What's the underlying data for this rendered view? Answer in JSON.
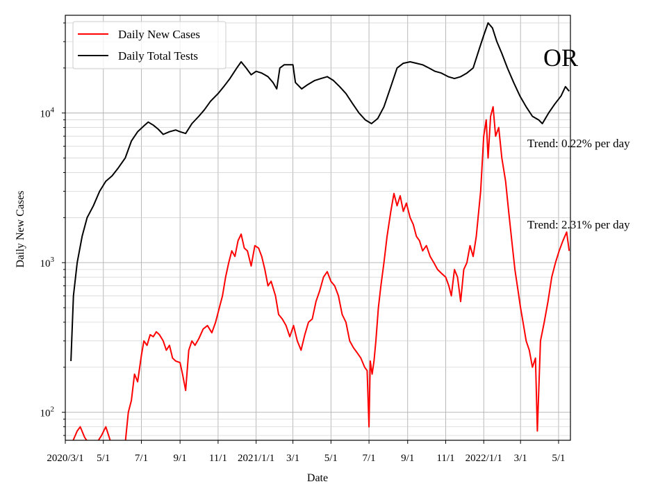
{
  "chart_data": {
    "type": "line",
    "xlabel": "Date",
    "ylabel": "Daily New Cases",
    "yscale": "log",
    "ylim": [
      65,
      45000
    ],
    "xlim": [
      "2020-03-01",
      "2022-05-20"
    ],
    "grid": true,
    "legend_position": "top-left",
    "x_ticks": [
      {
        "date": "2020-03-01",
        "label": "2020/3/1"
      },
      {
        "date": "2020-05-01",
        "label": "5/1"
      },
      {
        "date": "2020-07-01",
        "label": "7/1"
      },
      {
        "date": "2020-09-01",
        "label": "9/1"
      },
      {
        "date": "2020-11-01",
        "label": "11/1"
      },
      {
        "date": "2021-01-01",
        "label": "2021/1/1"
      },
      {
        "date": "2021-03-01",
        "label": "3/1"
      },
      {
        "date": "2021-05-01",
        "label": "5/1"
      },
      {
        "date": "2021-07-01",
        "label": "7/1"
      },
      {
        "date": "2021-09-01",
        "label": "9/1"
      },
      {
        "date": "2021-11-01",
        "label": "11/1"
      },
      {
        "date": "2022-01-01",
        "label": "2022/1/1"
      },
      {
        "date": "2022-03-01",
        "label": "3/1"
      },
      {
        "date": "2022-05-01",
        "label": "5/1"
      }
    ],
    "y_ticks": [
      {
        "value": 100,
        "base": "10",
        "exp": "2"
      },
      {
        "value": 1000,
        "base": "10",
        "exp": "3"
      },
      {
        "value": 10000,
        "base": "10",
        "exp": "4"
      }
    ],
    "series": [
      {
        "name": "Daily New Cases",
        "color": "#ff0000",
        "points": [
          [
            "2020-03-10",
            60
          ],
          [
            "2020-03-20",
            75
          ],
          [
            "2020-03-25",
            80
          ],
          [
            "2020-04-01",
            68
          ],
          [
            "2020-04-10",
            60
          ],
          [
            "2020-04-20",
            62
          ],
          [
            "2020-04-28",
            70
          ],
          [
            "2020-05-05",
            80
          ],
          [
            "2020-05-12",
            65
          ],
          [
            "2020-05-20",
            60
          ],
          [
            "2020-05-28",
            58
          ],
          [
            "2020-06-05",
            62
          ],
          [
            "2020-06-10",
            100
          ],
          [
            "2020-06-15",
            120
          ],
          [
            "2020-06-20",
            180
          ],
          [
            "2020-06-25",
            160
          ],
          [
            "2020-07-01",
            240
          ],
          [
            "2020-07-05",
            300
          ],
          [
            "2020-07-10",
            280
          ],
          [
            "2020-07-15",
            330
          ],
          [
            "2020-07-20",
            320
          ],
          [
            "2020-07-25",
            345
          ],
          [
            "2020-07-30",
            330
          ],
          [
            "2020-08-05",
            300
          ],
          [
            "2020-08-10",
            260
          ],
          [
            "2020-08-15",
            280
          ],
          [
            "2020-08-20",
            230
          ],
          [
            "2020-08-25",
            220
          ],
          [
            "2020-09-01",
            215
          ],
          [
            "2020-09-05",
            180
          ],
          [
            "2020-09-10",
            140
          ],
          [
            "2020-09-15",
            260
          ],
          [
            "2020-09-20",
            300
          ],
          [
            "2020-09-25",
            280
          ],
          [
            "2020-10-01",
            310
          ],
          [
            "2020-10-08",
            360
          ],
          [
            "2020-10-15",
            380
          ],
          [
            "2020-10-22",
            340
          ],
          [
            "2020-10-28",
            400
          ],
          [
            "2020-11-03",
            500
          ],
          [
            "2020-11-08",
            600
          ],
          [
            "2020-11-13",
            800
          ],
          [
            "2020-11-18",
            1000
          ],
          [
            "2020-11-23",
            1200
          ],
          [
            "2020-11-28",
            1100
          ],
          [
            "2020-12-03",
            1400
          ],
          [
            "2020-12-08",
            1550
          ],
          [
            "2020-12-13",
            1250
          ],
          [
            "2020-12-18",
            1200
          ],
          [
            "2020-12-24",
            950
          ],
          [
            "2020-12-30",
            1300
          ],
          [
            "2021-01-05",
            1250
          ],
          [
            "2021-01-10",
            1100
          ],
          [
            "2021-01-15",
            900
          ],
          [
            "2021-01-20",
            700
          ],
          [
            "2021-01-25",
            750
          ],
          [
            "2021-02-01",
            600
          ],
          [
            "2021-02-06",
            450
          ],
          [
            "2021-02-12",
            420
          ],
          [
            "2021-02-18",
            380
          ],
          [
            "2021-02-24",
            320
          ],
          [
            "2021-03-02",
            380
          ],
          [
            "2021-03-08",
            300
          ],
          [
            "2021-03-14",
            260
          ],
          [
            "2021-03-20",
            330
          ],
          [
            "2021-03-26",
            400
          ],
          [
            "2021-04-01",
            420
          ],
          [
            "2021-04-07",
            550
          ],
          [
            "2021-04-13",
            650
          ],
          [
            "2021-04-19",
            800
          ],
          [
            "2021-04-25",
            870
          ],
          [
            "2021-05-01",
            750
          ],
          [
            "2021-05-07",
            700
          ],
          [
            "2021-05-13",
            600
          ],
          [
            "2021-05-19",
            450
          ],
          [
            "2021-05-25",
            400
          ],
          [
            "2021-05-31",
            300
          ],
          [
            "2021-06-06",
            270
          ],
          [
            "2021-06-12",
            250
          ],
          [
            "2021-06-18",
            230
          ],
          [
            "2021-06-24",
            200
          ],
          [
            "2021-06-28",
            190
          ],
          [
            "2021-07-01",
            80
          ],
          [
            "2021-07-03",
            220
          ],
          [
            "2021-07-06",
            180
          ],
          [
            "2021-07-09",
            220
          ],
          [
            "2021-07-12",
            300
          ],
          [
            "2021-07-16",
            500
          ],
          [
            "2021-07-20",
            700
          ],
          [
            "2021-07-25",
            1000
          ],
          [
            "2021-07-30",
            1500
          ],
          [
            "2021-08-05",
            2200
          ],
          [
            "2021-08-10",
            2900
          ],
          [
            "2021-08-15",
            2400
          ],
          [
            "2021-08-20",
            2800
          ],
          [
            "2021-08-25",
            2200
          ],
          [
            "2021-08-30",
            2500
          ],
          [
            "2021-09-05",
            2000
          ],
          [
            "2021-09-10",
            1800
          ],
          [
            "2021-09-15",
            1500
          ],
          [
            "2021-09-20",
            1400
          ],
          [
            "2021-09-25",
            1200
          ],
          [
            "2021-10-01",
            1300
          ],
          [
            "2021-10-07",
            1100
          ],
          [
            "2021-10-13",
            1000
          ],
          [
            "2021-10-19",
            900
          ],
          [
            "2021-10-25",
            850
          ],
          [
            "2021-11-01",
            800
          ],
          [
            "2021-11-06",
            700
          ],
          [
            "2021-11-10",
            600
          ],
          [
            "2021-11-15",
            900
          ],
          [
            "2021-11-20",
            800
          ],
          [
            "2021-11-25",
            550
          ],
          [
            "2021-11-30",
            900
          ],
          [
            "2021-12-05",
            1000
          ],
          [
            "2021-12-10",
            1300
          ],
          [
            "2021-12-15",
            1100
          ],
          [
            "2021-12-20",
            1500
          ],
          [
            "2021-12-27",
            3000
          ],
          [
            "2022-01-01",
            7000
          ],
          [
            "2022-01-05",
            9000
          ],
          [
            "2022-01-08",
            5000
          ],
          [
            "2022-01-12",
            9500
          ],
          [
            "2022-01-16",
            11000
          ],
          [
            "2022-01-20",
            7000
          ],
          [
            "2022-01-25",
            8000
          ],
          [
            "2022-01-30",
            5000
          ],
          [
            "2022-02-05",
            3500
          ],
          [
            "2022-02-10",
            2200
          ],
          [
            "2022-02-15",
            1400
          ],
          [
            "2022-02-20",
            900
          ],
          [
            "2022-02-25",
            650
          ],
          [
            "2022-03-01",
            500
          ],
          [
            "2022-03-05",
            400
          ],
          [
            "2022-03-10",
            300
          ],
          [
            "2022-03-15",
            260
          ],
          [
            "2022-03-20",
            200
          ],
          [
            "2022-03-25",
            230
          ],
          [
            "2022-03-28",
            75
          ],
          [
            "2022-04-02",
            300
          ],
          [
            "2022-04-08",
            400
          ],
          [
            "2022-04-14",
            550
          ],
          [
            "2022-04-20",
            800
          ],
          [
            "2022-04-26",
            1000
          ],
          [
            "2022-05-02",
            1200
          ],
          [
            "2022-05-08",
            1400
          ],
          [
            "2022-05-14",
            1600
          ],
          [
            "2022-05-18",
            1200
          ]
        ]
      },
      {
        "name": "Daily Total Tests",
        "color": "#000000",
        "points": [
          [
            "2020-03-10",
            220
          ],
          [
            "2020-03-14",
            600
          ],
          [
            "2020-03-20",
            1000
          ],
          [
            "2020-03-28",
            1500
          ],
          [
            "2020-04-05",
            2000
          ],
          [
            "2020-04-15",
            2400
          ],
          [
            "2020-04-25",
            3000
          ],
          [
            "2020-05-05",
            3500
          ],
          [
            "2020-05-15",
            3800
          ],
          [
            "2020-05-25",
            4300
          ],
          [
            "2020-06-05",
            5000
          ],
          [
            "2020-06-15",
            6500
          ],
          [
            "2020-06-25",
            7500
          ],
          [
            "2020-07-05",
            8200
          ],
          [
            "2020-07-12",
            8700
          ],
          [
            "2020-07-20",
            8300
          ],
          [
            "2020-07-28",
            7800
          ],
          [
            "2020-08-05",
            7200
          ],
          [
            "2020-08-15",
            7500
          ],
          [
            "2020-08-25",
            7700
          ],
          [
            "2020-09-01",
            7500
          ],
          [
            "2020-09-10",
            7300
          ],
          [
            "2020-09-20",
            8500
          ],
          [
            "2020-10-01",
            9500
          ],
          [
            "2020-10-10",
            10500
          ],
          [
            "2020-10-20",
            12000
          ],
          [
            "2020-11-01",
            13500
          ],
          [
            "2020-11-10",
            15000
          ],
          [
            "2020-11-20",
            17000
          ],
          [
            "2020-12-01",
            20000
          ],
          [
            "2020-12-08",
            22000
          ],
          [
            "2020-12-16",
            20000
          ],
          [
            "2020-12-24",
            18000
          ],
          [
            "2021-01-01",
            19000
          ],
          [
            "2021-01-10",
            18500
          ],
          [
            "2021-01-20",
            17500
          ],
          [
            "2021-01-28",
            16000
          ],
          [
            "2021-02-03",
            14500
          ],
          [
            "2021-02-08",
            20000
          ],
          [
            "2021-02-15",
            21000
          ],
          [
            "2021-02-24",
            21000
          ],
          [
            "2021-03-01",
            21000
          ],
          [
            "2021-03-05",
            16000
          ],
          [
            "2021-03-15",
            14500
          ],
          [
            "2021-03-25",
            15500
          ],
          [
            "2021-04-05",
            16500
          ],
          [
            "2021-04-15",
            17000
          ],
          [
            "2021-04-25",
            17500
          ],
          [
            "2021-05-05",
            16500
          ],
          [
            "2021-05-15",
            15000
          ],
          [
            "2021-05-25",
            13500
          ],
          [
            "2021-06-05",
            11500
          ],
          [
            "2021-06-15",
            10000
          ],
          [
            "2021-06-25",
            9000
          ],
          [
            "2021-07-05",
            8500
          ],
          [
            "2021-07-15",
            9200
          ],
          [
            "2021-07-25",
            11000
          ],
          [
            "2021-08-05",
            15000
          ],
          [
            "2021-08-15",
            20000
          ],
          [
            "2021-08-25",
            21500
          ],
          [
            "2021-09-05",
            22000
          ],
          [
            "2021-09-15",
            21500
          ],
          [
            "2021-09-25",
            21000
          ],
          [
            "2021-10-05",
            20000
          ],
          [
            "2021-10-15",
            19000
          ],
          [
            "2021-10-25",
            18500
          ],
          [
            "2021-11-05",
            17500
          ],
          [
            "2021-11-15",
            17000
          ],
          [
            "2021-11-25",
            17500
          ],
          [
            "2021-12-05",
            18500
          ],
          [
            "2021-12-15",
            20000
          ],
          [
            "2021-12-25",
            27000
          ],
          [
            "2022-01-01",
            33000
          ],
          [
            "2022-01-08",
            40000
          ],
          [
            "2022-01-15",
            37000
          ],
          [
            "2022-01-22",
            30000
          ],
          [
            "2022-01-30",
            25000
          ],
          [
            "2022-02-08",
            20000
          ],
          [
            "2022-02-18",
            16000
          ],
          [
            "2022-02-28",
            13000
          ],
          [
            "2022-03-10",
            11000
          ],
          [
            "2022-03-20",
            9500
          ],
          [
            "2022-03-30",
            9000
          ],
          [
            "2022-04-05",
            8500
          ],
          [
            "2022-04-15",
            10000
          ],
          [
            "2022-04-25",
            11500
          ],
          [
            "2022-05-05",
            13000
          ],
          [
            "2022-05-12",
            15000
          ],
          [
            "2022-05-18",
            14000
          ]
        ]
      }
    ],
    "annotations": [
      {
        "text": "OR",
        "anchor": "top-right",
        "kind": "state-label"
      },
      {
        "text": "Trend: 0.22% per day",
        "kind": "trend-tests"
      },
      {
        "text": "Trend: 2.31% per day",
        "kind": "trend-cases"
      }
    ]
  }
}
